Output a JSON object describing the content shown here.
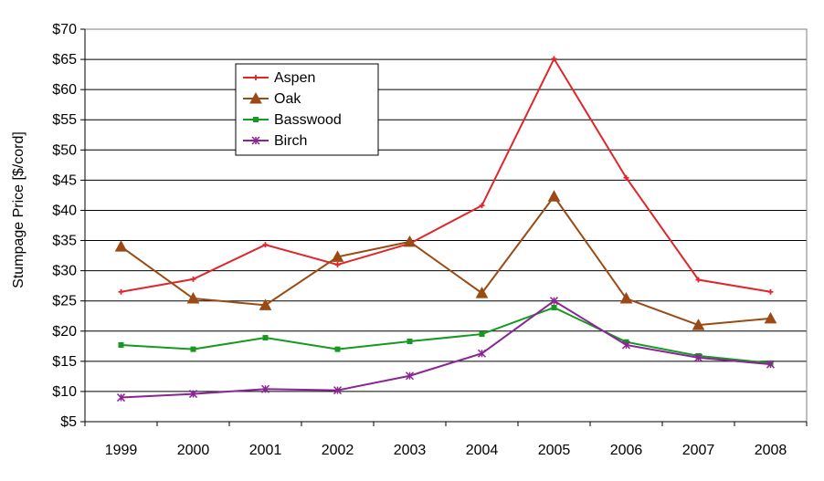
{
  "chart_data": {
    "type": "line",
    "title": "",
    "xlabel": "",
    "ylabel": "Stumpage Price [$/cord]",
    "categories": [
      "1999",
      "2000",
      "2001",
      "2002",
      "2003",
      "2004",
      "2005",
      "2006",
      "2007",
      "2008"
    ],
    "y_ticks": [
      "$5",
      "$10",
      "$15",
      "$20",
      "$25",
      "$30",
      "$35",
      "$40",
      "$45",
      "$50",
      "$55",
      "$60",
      "$65",
      "$70"
    ],
    "ylim": [
      5,
      70
    ],
    "y_step": 5,
    "grid": true,
    "legend_position": "top-left",
    "series": [
      {
        "name": "Aspen",
        "color": "#e0262b",
        "marker": "plus-icon",
        "values": [
          26.5,
          28.6,
          34.3,
          31.0,
          34.5,
          40.8,
          65.1,
          45.4,
          28.5,
          26.5
        ]
      },
      {
        "name": "Oak",
        "color": "#9a4a12",
        "marker": "triangle-icon",
        "values": [
          34.0,
          25.4,
          24.3,
          32.3,
          34.8,
          26.3,
          42.3,
          25.4,
          21.0,
          22.1
        ]
      },
      {
        "name": "Basswood",
        "color": "#139a1f",
        "marker": "square-icon",
        "values": [
          17.7,
          17.0,
          18.9,
          17.0,
          18.3,
          19.5,
          23.9,
          18.2,
          15.9,
          14.7
        ]
      },
      {
        "name": "Birch",
        "color": "#8b2494",
        "marker": "asterisk-icon",
        "values": [
          9.0,
          9.6,
          10.4,
          10.2,
          12.6,
          16.3,
          25.0,
          17.7,
          15.6,
          14.5
        ]
      }
    ]
  }
}
